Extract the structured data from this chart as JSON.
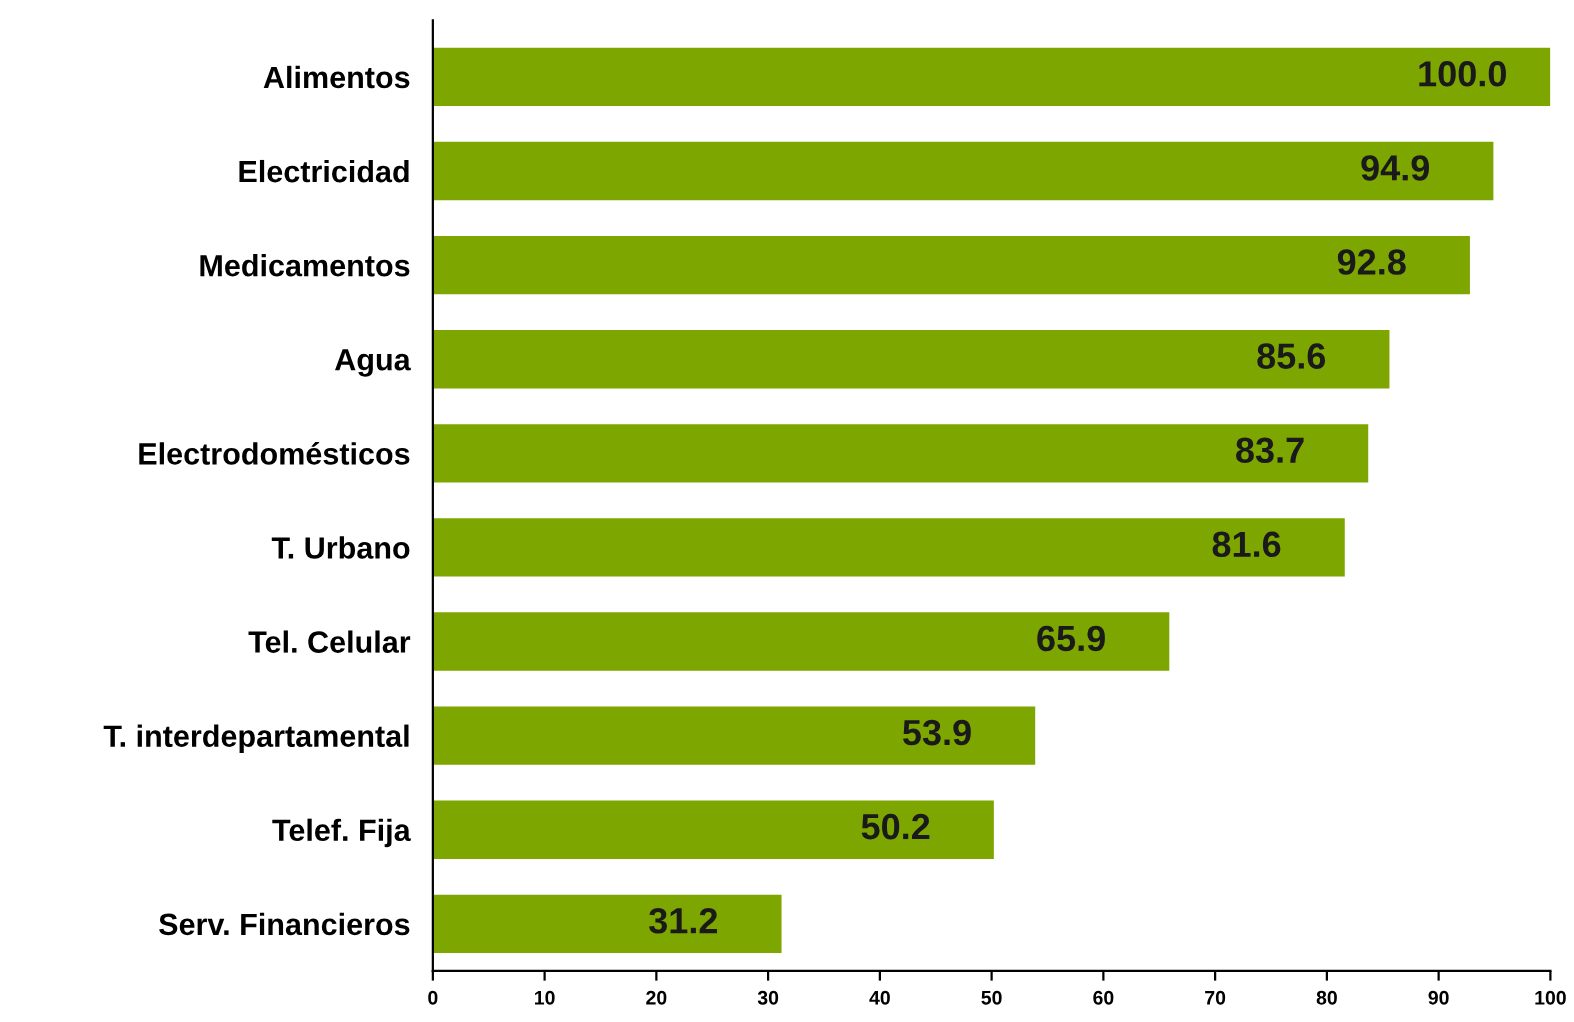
{
  "chart_data": {
    "type": "bar",
    "orientation": "horizontal",
    "categories": [
      "Alimentos",
      "Electricidad",
      "Medicamentos",
      "Agua",
      "Electrodomésticos",
      "T. Urbano",
      "Tel. Celular",
      "T. interdepartamental",
      "Telef. Fija",
      "Serv. Financieros"
    ],
    "values": [
      100.0,
      94.9,
      92.8,
      85.6,
      83.7,
      81.6,
      65.9,
      53.9,
      50.2,
      31.2
    ],
    "value_labels": [
      "100.0",
      "94.9",
      "92.8",
      "85.6",
      "83.7",
      "81.6",
      "65.9",
      "53.9",
      "50.2",
      "31.2"
    ],
    "color": "#7da600",
    "xlim": [
      0,
      100
    ],
    "xticks": [
      0,
      10,
      20,
      30,
      40,
      50,
      60,
      70,
      80,
      90,
      100
    ],
    "grid": false
  }
}
